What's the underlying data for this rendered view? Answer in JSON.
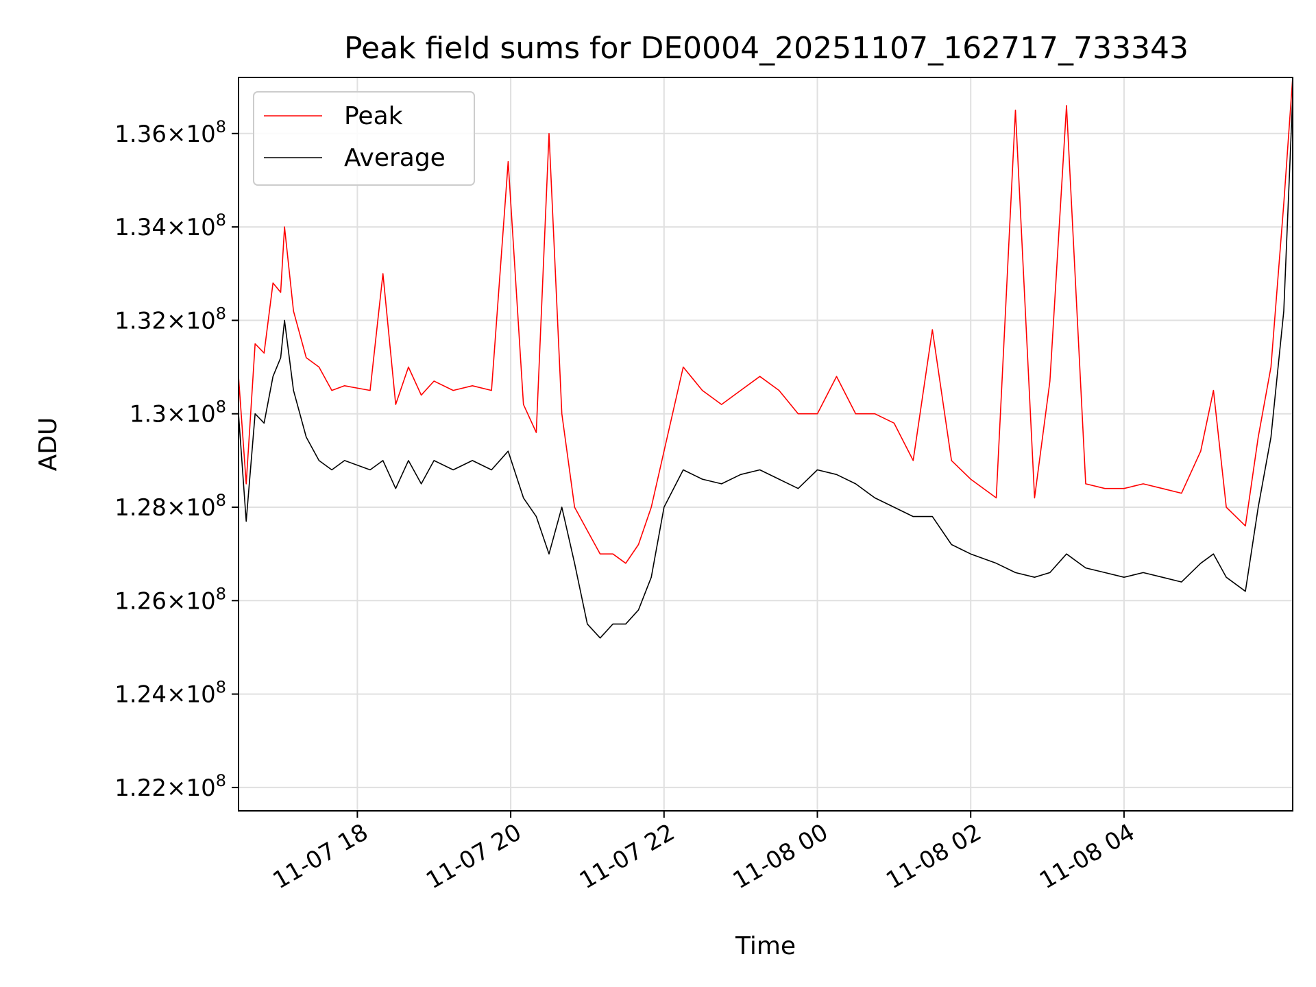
{
  "chart_data": {
    "type": "line",
    "title": "Peak field sums for DE0004_20251107_162717_733343",
    "xlabel": "Time",
    "ylabel": "ADU",
    "grid": true,
    "legend_position": "upper-left",
    "x_range": [
      "2025-11-07 16:27",
      "2025-11-08 06:12"
    ],
    "ylim": [
      121500000.0,
      137200000.0
    ],
    "y_ticks": [
      {
        "value": 122000000.0,
        "mantissa": "1.22",
        "exponent": "8"
      },
      {
        "value": 124000000.0,
        "mantissa": "1.24",
        "exponent": "8"
      },
      {
        "value": 126000000.0,
        "mantissa": "1.26",
        "exponent": "8"
      },
      {
        "value": 128000000.0,
        "mantissa": "1.28",
        "exponent": "8"
      },
      {
        "value": 130000000.0,
        "mantissa": "1.3",
        "exponent": "8"
      },
      {
        "value": 132000000.0,
        "mantissa": "1.32",
        "exponent": "8"
      },
      {
        "value": 134000000.0,
        "mantissa": "1.34",
        "exponent": "8"
      },
      {
        "value": 136000000.0,
        "mantissa": "1.36",
        "exponent": "8"
      }
    ],
    "x_ticks": [
      {
        "time": "2025-11-07 18:00",
        "label": "11-07 18"
      },
      {
        "time": "2025-11-07 20:00",
        "label": "11-07 20"
      },
      {
        "time": "2025-11-07 22:00",
        "label": "11-07 22"
      },
      {
        "time": "2025-11-08 00:00",
        "label": "11-08 00"
      },
      {
        "time": "2025-11-08 02:00",
        "label": "11-08 02"
      },
      {
        "time": "2025-11-08 04:00",
        "label": "11-08 04"
      }
    ],
    "series": [
      {
        "name": "Peak",
        "color": "#ff0000",
        "points": [
          [
            "2025-11-07 16:27",
            130800000.0
          ],
          [
            "2025-11-07 16:33",
            128500000.0
          ],
          [
            "2025-11-07 16:40",
            131500000.0
          ],
          [
            "2025-11-07 16:47",
            131300000.0
          ],
          [
            "2025-11-07 16:54",
            132800000.0
          ],
          [
            "2025-11-07 17:00",
            132600000.0
          ],
          [
            "2025-11-07 17:03",
            134000000.0
          ],
          [
            "2025-11-07 17:10",
            132200000.0
          ],
          [
            "2025-11-07 17:20",
            131200000.0
          ],
          [
            "2025-11-07 17:30",
            131000000.0
          ],
          [
            "2025-11-07 17:40",
            130500000.0
          ],
          [
            "2025-11-07 17:50",
            130600000.0
          ],
          [
            "2025-11-07 18:10",
            130500000.0
          ],
          [
            "2025-11-07 18:20",
            133000000.0
          ],
          [
            "2025-11-07 18:30",
            130200000.0
          ],
          [
            "2025-11-07 18:40",
            131000000.0
          ],
          [
            "2025-11-07 18:50",
            130400000.0
          ],
          [
            "2025-11-07 19:00",
            130700000.0
          ],
          [
            "2025-11-07 19:15",
            130500000.0
          ],
          [
            "2025-11-07 19:30",
            130600000.0
          ],
          [
            "2025-11-07 19:45",
            130500000.0
          ],
          [
            "2025-11-07 19:58",
            135400000.0
          ],
          [
            "2025-11-07 20:10",
            130200000.0
          ],
          [
            "2025-11-07 20:20",
            129600000.0
          ],
          [
            "2025-11-07 20:30",
            136000000.0
          ],
          [
            "2025-11-07 20:40",
            130000000.0
          ],
          [
            "2025-11-07 20:50",
            128000000.0
          ],
          [
            "2025-11-07 21:00",
            127500000.0
          ],
          [
            "2025-11-07 21:10",
            127000000.0
          ],
          [
            "2025-11-07 21:20",
            127000000.0
          ],
          [
            "2025-11-07 21:30",
            126800000.0
          ],
          [
            "2025-11-07 21:40",
            127200000.0
          ],
          [
            "2025-11-07 21:50",
            128000000.0
          ],
          [
            "2025-11-07 22:00",
            129200000.0
          ],
          [
            "2025-11-07 22:15",
            131000000.0
          ],
          [
            "2025-11-07 22:30",
            130500000.0
          ],
          [
            "2025-11-07 22:45",
            130200000.0
          ],
          [
            "2025-11-07 23:00",
            130500000.0
          ],
          [
            "2025-11-07 23:15",
            130800000.0
          ],
          [
            "2025-11-07 23:30",
            130500000.0
          ],
          [
            "2025-11-07 23:45",
            130000000.0
          ],
          [
            "2025-11-08 00:00",
            130000000.0
          ],
          [
            "2025-11-08 00:15",
            130800000.0
          ],
          [
            "2025-11-08 00:30",
            130000000.0
          ],
          [
            "2025-11-08 00:45",
            130000000.0
          ],
          [
            "2025-11-08 01:00",
            129800000.0
          ],
          [
            "2025-11-08 01:15",
            129000000.0
          ],
          [
            "2025-11-08 01:30",
            131800000.0
          ],
          [
            "2025-11-08 01:45",
            129000000.0
          ],
          [
            "2025-11-08 02:00",
            128600000.0
          ],
          [
            "2025-11-08 02:20",
            128200000.0
          ],
          [
            "2025-11-08 02:35",
            136500000.0
          ],
          [
            "2025-11-08 02:50",
            128200000.0
          ],
          [
            "2025-11-08 03:02",
            130700000.0
          ],
          [
            "2025-11-08 03:15",
            136600000.0
          ],
          [
            "2025-11-08 03:30",
            128500000.0
          ],
          [
            "2025-11-08 03:45",
            128400000.0
          ],
          [
            "2025-11-08 04:00",
            128400000.0
          ],
          [
            "2025-11-08 04:15",
            128500000.0
          ],
          [
            "2025-11-08 04:30",
            128400000.0
          ],
          [
            "2025-11-08 04:45",
            128300000.0
          ],
          [
            "2025-11-08 05:00",
            129200000.0
          ],
          [
            "2025-11-08 05:10",
            130500000.0
          ],
          [
            "2025-11-08 05:20",
            128000000.0
          ],
          [
            "2025-11-08 05:35",
            127600000.0
          ],
          [
            "2025-11-08 05:45",
            129500000.0
          ],
          [
            "2025-11-08 05:55",
            131000000.0
          ],
          [
            "2025-11-08 06:05",
            134500000.0
          ],
          [
            "2025-11-08 06:12",
            137200000.0
          ]
        ]
      },
      {
        "name": "Average",
        "color": "#000000",
        "points": [
          [
            "2025-11-07 16:27",
            130000000.0
          ],
          [
            "2025-11-07 16:33",
            127700000.0
          ],
          [
            "2025-11-07 16:40",
            130000000.0
          ],
          [
            "2025-11-07 16:47",
            129800000.0
          ],
          [
            "2025-11-07 16:54",
            130800000.0
          ],
          [
            "2025-11-07 17:00",
            131200000.0
          ],
          [
            "2025-11-07 17:03",
            132000000.0
          ],
          [
            "2025-11-07 17:10",
            130500000.0
          ],
          [
            "2025-11-07 17:20",
            129500000.0
          ],
          [
            "2025-11-07 17:30",
            129000000.0
          ],
          [
            "2025-11-07 17:40",
            128800000.0
          ],
          [
            "2025-11-07 17:50",
            129000000.0
          ],
          [
            "2025-11-07 18:10",
            128800000.0
          ],
          [
            "2025-11-07 18:20",
            129000000.0
          ],
          [
            "2025-11-07 18:30",
            128400000.0
          ],
          [
            "2025-11-07 18:40",
            129000000.0
          ],
          [
            "2025-11-07 18:50",
            128500000.0
          ],
          [
            "2025-11-07 19:00",
            129000000.0
          ],
          [
            "2025-11-07 19:15",
            128800000.0
          ],
          [
            "2025-11-07 19:30",
            129000000.0
          ],
          [
            "2025-11-07 19:45",
            128800000.0
          ],
          [
            "2025-11-07 19:58",
            129200000.0
          ],
          [
            "2025-11-07 20:10",
            128200000.0
          ],
          [
            "2025-11-07 20:20",
            127800000.0
          ],
          [
            "2025-11-07 20:30",
            127000000.0
          ],
          [
            "2025-11-07 20:40",
            128000000.0
          ],
          [
            "2025-11-07 20:50",
            126800000.0
          ],
          [
            "2025-11-07 21:00",
            125500000.0
          ],
          [
            "2025-11-07 21:10",
            125200000.0
          ],
          [
            "2025-11-07 21:20",
            125500000.0
          ],
          [
            "2025-11-07 21:30",
            125500000.0
          ],
          [
            "2025-11-07 21:40",
            125800000.0
          ],
          [
            "2025-11-07 21:50",
            126500000.0
          ],
          [
            "2025-11-07 22:00",
            128000000.0
          ],
          [
            "2025-11-07 22:15",
            128800000.0
          ],
          [
            "2025-11-07 22:30",
            128600000.0
          ],
          [
            "2025-11-07 22:45",
            128500000.0
          ],
          [
            "2025-11-07 23:00",
            128700000.0
          ],
          [
            "2025-11-07 23:15",
            128800000.0
          ],
          [
            "2025-11-07 23:30",
            128600000.0
          ],
          [
            "2025-11-07 23:45",
            128400000.0
          ],
          [
            "2025-11-08 00:00",
            128800000.0
          ],
          [
            "2025-11-08 00:15",
            128700000.0
          ],
          [
            "2025-11-08 00:30",
            128500000.0
          ],
          [
            "2025-11-08 00:45",
            128200000.0
          ],
          [
            "2025-11-08 01:00",
            128000000.0
          ],
          [
            "2025-11-08 01:15",
            127800000.0
          ],
          [
            "2025-11-08 01:30",
            127800000.0
          ],
          [
            "2025-11-08 01:45",
            127200000.0
          ],
          [
            "2025-11-08 02:00",
            127000000.0
          ],
          [
            "2025-11-08 02:20",
            126800000.0
          ],
          [
            "2025-11-08 02:35",
            126600000.0
          ],
          [
            "2025-11-08 02:50",
            126500000.0
          ],
          [
            "2025-11-08 03:02",
            126600000.0
          ],
          [
            "2025-11-08 03:15",
            127000000.0
          ],
          [
            "2025-11-08 03:30",
            126700000.0
          ],
          [
            "2025-11-08 03:45",
            126600000.0
          ],
          [
            "2025-11-08 04:00",
            126500000.0
          ],
          [
            "2025-11-08 04:15",
            126600000.0
          ],
          [
            "2025-11-08 04:30",
            126500000.0
          ],
          [
            "2025-11-08 04:45",
            126400000.0
          ],
          [
            "2025-11-08 05:00",
            126800000.0
          ],
          [
            "2025-11-08 05:10",
            127000000.0
          ],
          [
            "2025-11-08 05:20",
            126500000.0
          ],
          [
            "2025-11-08 05:35",
            126200000.0
          ],
          [
            "2025-11-08 05:45",
            128000000.0
          ],
          [
            "2025-11-08 05:55",
            129500000.0
          ],
          [
            "2025-11-08 06:05",
            132200000.0
          ],
          [
            "2025-11-08 06:12",
            136800000.0
          ]
        ]
      }
    ]
  }
}
